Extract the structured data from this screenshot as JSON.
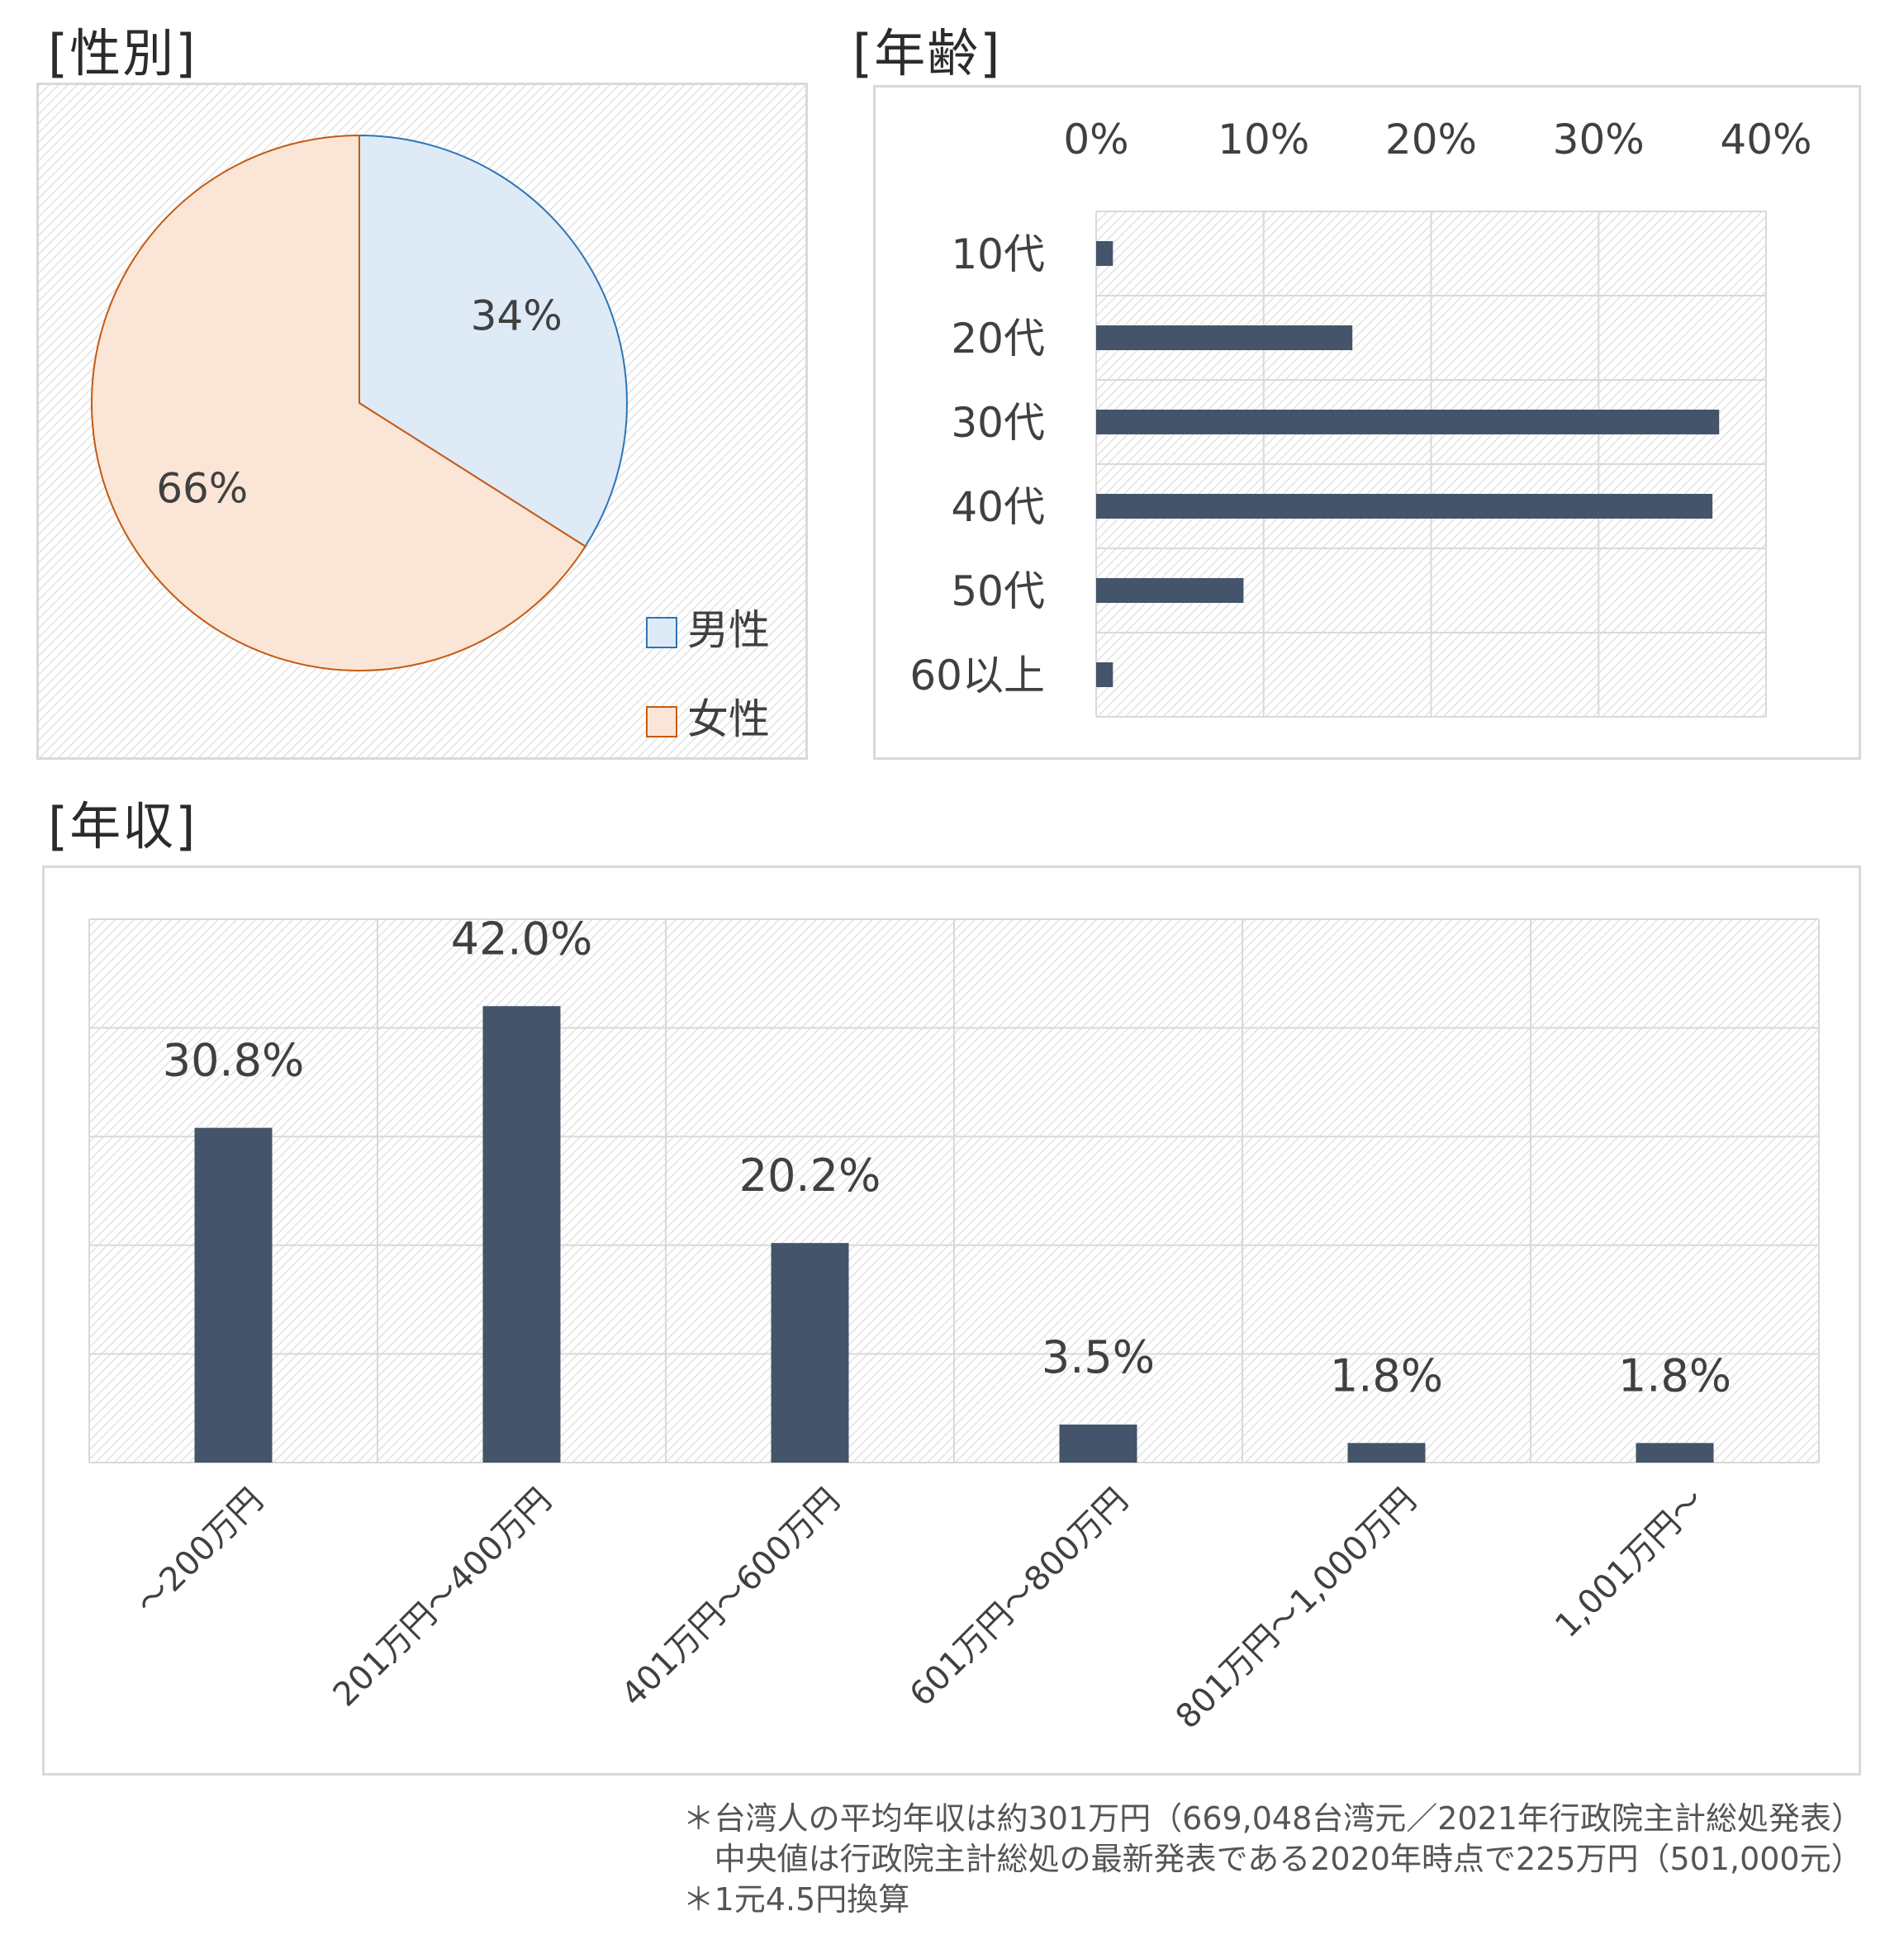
{
  "titles": {
    "gender": "[性別]",
    "age": "[年齢]",
    "income": "[年収]"
  },
  "colors": {
    "bar": "#44546a",
    "male_fill": "#deeaf6",
    "male_stroke": "#2e75b6",
    "female_fill": "#fbe5d6",
    "female_stroke": "#c55a11",
    "grid": "#d9d9d9"
  },
  "chart_data": [
    {
      "type": "pie",
      "title": "[性別]",
      "slices": [
        {
          "label": "男性",
          "value": 34,
          "data_label": "34%"
        },
        {
          "label": "女性",
          "value": 66,
          "data_label": "66%"
        }
      ],
      "legend": "right-bottom"
    },
    {
      "type": "bar",
      "orientation": "horizontal",
      "title": "[年齢]",
      "categories": [
        "10代",
        "20代",
        "30代",
        "40代",
        "50代",
        "60以上"
      ],
      "values": [
        1,
        15.3,
        37.2,
        36.8,
        8.8,
        1
      ],
      "xlim": [
        0,
        40
      ],
      "xticks": [
        "0%",
        "10%",
        "20%",
        "30%",
        "40%"
      ],
      "grid": true
    },
    {
      "type": "bar",
      "title": "[年収]",
      "categories": [
        "～200万円",
        "201万円～400万円",
        "401万円～600万円",
        "601万円～800万円",
        "801万円～1,000万円",
        "1,001万円～"
      ],
      "values": [
        30.8,
        42.0,
        20.2,
        3.5,
        1.8,
        1.8
      ],
      "data_labels": [
        "30.8%",
        "42.0%",
        "20.2%",
        "3.5%",
        "1.8%",
        "1.8%"
      ],
      "ylim": [
        0,
        50
      ],
      "grid": true
    }
  ],
  "footnotes": [
    "＊台湾人の平均年収は約301万円（669,048台湾元／2021年行政院主計総処発表）",
    "　中央値は行政院主計総処の最新発表である2020年時点で225万円（501,000元）",
    "＊1元4.5円換算"
  ]
}
